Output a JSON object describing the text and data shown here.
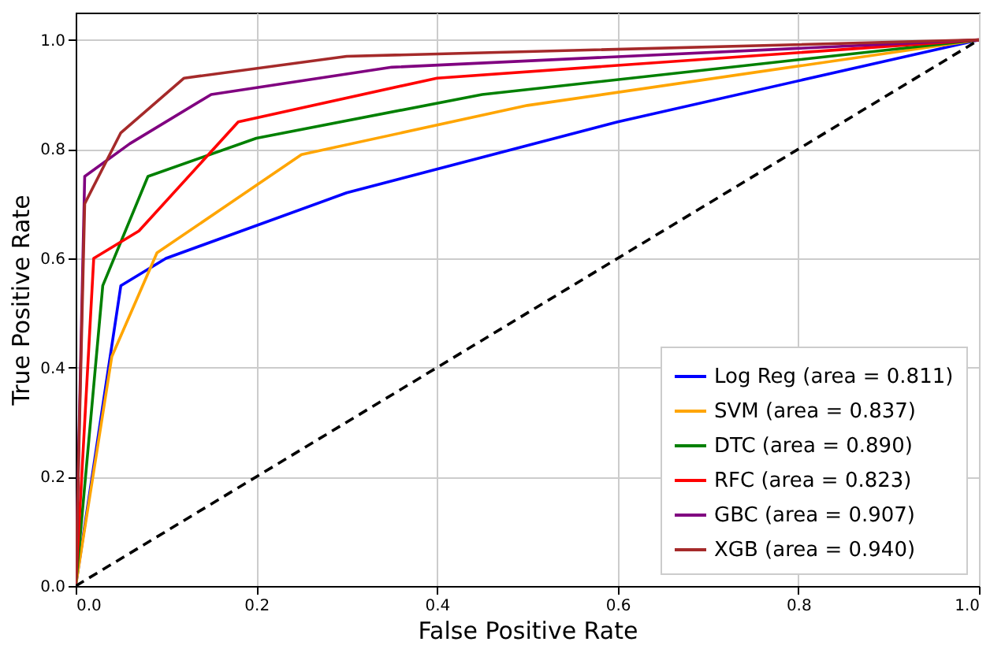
{
  "chart_data": {
    "type": "line",
    "xlabel": "False Positive Rate",
    "ylabel": "True Positive Rate",
    "xlim": [
      0,
      1
    ],
    "ylim": [
      0,
      1.05
    ],
    "xticks": [
      {
        "value": 0,
        "label": "0.0"
      },
      {
        "value": 0.2,
        "label": "0.2"
      },
      {
        "value": 0.4,
        "label": "0.4"
      },
      {
        "value": 0.6,
        "label": "0.6"
      },
      {
        "value": 0.8,
        "label": "0.8"
      },
      {
        "value": 1,
        "label": "1.0"
      }
    ],
    "yticks": [
      {
        "value": 0,
        "label": "0.0"
      },
      {
        "value": 0.2,
        "label": "0.2"
      },
      {
        "value": 0.4,
        "label": "0.4"
      },
      {
        "value": 0.6,
        "label": "0.6"
      },
      {
        "value": 0.8,
        "label": "0.8"
      },
      {
        "value": 1,
        "label": "1.0"
      }
    ],
    "grid": true,
    "legend": "bottom right",
    "marker": "none",
    "series": [
      {
        "name": "Log Reg (area = 0.811)",
        "color": "#0000ff",
        "x": [
          0,
          0.05,
          0.1,
          0.3,
          0.6,
          1
        ],
        "values": [
          0,
          0.55,
          0.6,
          0.72,
          0.85,
          1
        ]
      },
      {
        "name": "SVM (area = 0.837)",
        "color": "#ffa500",
        "x": [
          0,
          0.04,
          0.09,
          0.25,
          0.5,
          1
        ],
        "values": [
          0,
          0.42,
          0.61,
          0.79,
          0.88,
          1
        ]
      },
      {
        "name": "DTC (area = 0.890)",
        "color": "#008000",
        "x": [
          0,
          0.03,
          0.08,
          0.2,
          0.45,
          1
        ],
        "values": [
          0,
          0.55,
          0.75,
          0.82,
          0.9,
          1
        ]
      },
      {
        "name": "RFC (area = 0.823)",
        "color": "#ff0000",
        "x": [
          0,
          0.02,
          0.07,
          0.18,
          0.4,
          1
        ],
        "values": [
          0,
          0.6,
          0.65,
          0.85,
          0.93,
          1
        ]
      },
      {
        "name": "GBC (area = 0.907)",
        "color": "#800080",
        "x": [
          0,
          0.01,
          0.06,
          0.15,
          0.35,
          1
        ],
        "values": [
          0,
          0.75,
          0.81,
          0.9,
          0.95,
          1
        ]
      },
      {
        "name": "XGB (area = 0.940)",
        "color": "#a52a2a",
        "x": [
          0,
          0.01,
          0.05,
          0.12,
          0.3,
          1
        ],
        "values": [
          0,
          0.7,
          0.83,
          0.93,
          0.97,
          1
        ]
      },
      {
        "color": "#000000",
        "line_style": "dashed",
        "x": [
          0,
          1
        ],
        "values": [
          0,
          1
        ]
      }
    ]
  }
}
